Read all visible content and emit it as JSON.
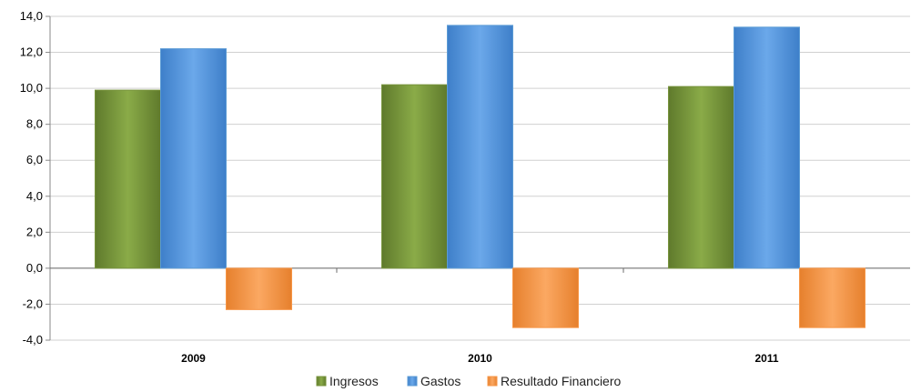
{
  "chart_data": {
    "type": "bar",
    "categories": [
      "2009",
      "2010",
      "2011"
    ],
    "series": [
      {
        "name": "Ingresos",
        "values": [
          9.9,
          10.2,
          10.1
        ],
        "color": "#77933c"
      },
      {
        "name": "Gastos",
        "values": [
          12.2,
          13.5,
          13.4
        ],
        "color": "#5b9bd5"
      },
      {
        "name": "Resultado Financiero",
        "values": [
          -2.3,
          -3.3,
          -3.3
        ],
        "color": "#f79646"
      }
    ],
    "yticks": [
      "14,0",
      "12,0",
      "10,0",
      "8,0",
      "6,0",
      "4,0",
      "2,0",
      "0,0",
      "-2,0",
      "-4,0"
    ],
    "ylim": [
      -4,
      14
    ],
    "grid": true,
    "legend": "bottom"
  }
}
